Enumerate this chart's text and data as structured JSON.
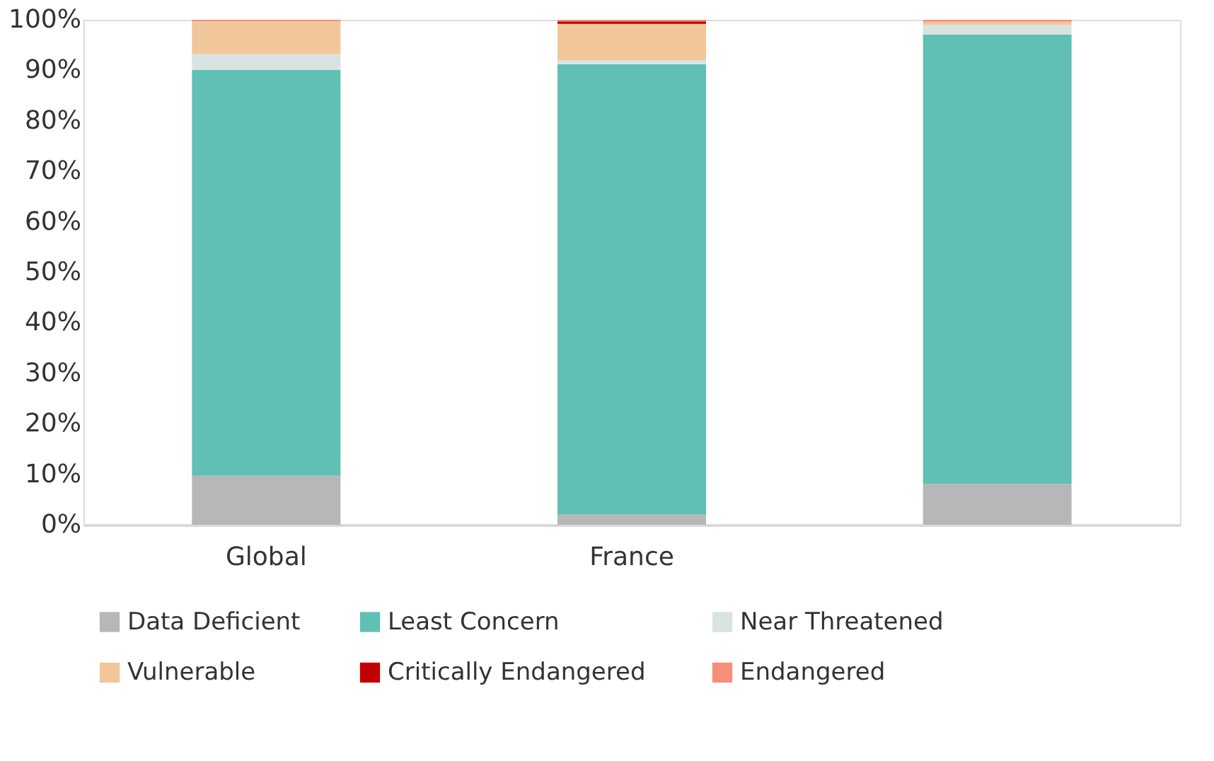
{
  "chart_data": {
    "type": "bar",
    "stacked": true,
    "categories": [
      "Global",
      "France",
      null
    ],
    "series": [
      {
        "name": "Data Deficient",
        "color": "#b7b7b7",
        "values": [
          9.7,
          2.0,
          8.1
        ]
      },
      {
        "name": "Least Concern",
        "color": "#5fc0b3",
        "values": [
          80.4,
          89.2,
          89.0
        ]
      },
      {
        "name": "Near Threatened",
        "color": "#d9e3e2",
        "values": [
          3.1,
          0.8,
          1.9
        ]
      },
      {
        "name": "Vulnerable",
        "color": "#f2c69b",
        "values": [
          6.5,
          7.2,
          0.6
        ]
      },
      {
        "name": "Critically  Endangered",
        "color": "#c00000",
        "values": [
          0,
          0.5,
          0
        ]
      },
      {
        "name": "Endangered",
        "color": "#f4907a",
        "values": [
          0.3,
          0.3,
          0.4
        ]
      }
    ],
    "ylim": [
      0,
      100
    ],
    "yticks": [
      {
        "value": 0,
        "label": "0%"
      },
      {
        "value": 10,
        "label": "10%"
      },
      {
        "value": 20,
        "label": "20%"
      },
      {
        "value": 30,
        "label": "30%"
      },
      {
        "value": 40,
        "label": "40%"
      },
      {
        "value": 50,
        "label": "50%"
      },
      {
        "value": 60,
        "label": "60%"
      },
      {
        "value": 70,
        "label": "70%"
      },
      {
        "value": 80,
        "label": "80%"
      },
      {
        "value": 90,
        "label": "90%"
      },
      {
        "value": 100,
        "label": "100%"
      }
    ],
    "grid": false,
    "legend": "bottom"
  }
}
